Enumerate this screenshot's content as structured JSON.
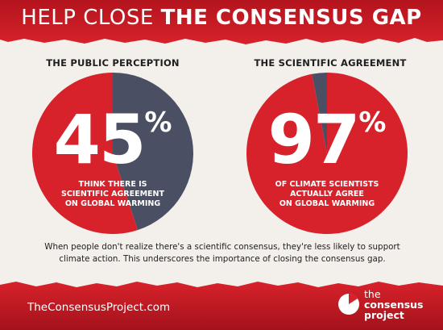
{
  "header": {
    "title_light": "HELP CLOSE",
    "title_bold": "THE CONSENSUS GAP"
  },
  "colors": {
    "red": "#d8222b",
    "dark_red": "#a3121b",
    "slate": "#4a4f63",
    "background": "#f3efea",
    "white": "#ffffff"
  },
  "chart_data": [
    {
      "type": "pie",
      "title": "THE PUBLIC PERCEPTION",
      "percent_label": "45",
      "percent_sign": "%",
      "caption": [
        "THINK THERE IS",
        "SCIENTIFIC AGREEMENT",
        "ON GLOBAL WARMING"
      ],
      "slices": [
        {
          "value": 45,
          "color": "#4a4f63"
        },
        {
          "value": 55,
          "color": "#d8222b"
        }
      ]
    },
    {
      "type": "pie",
      "title": "THE SCIENTIFIC AGREEMENT",
      "percent_label": "97",
      "percent_sign": "%",
      "caption": [
        "OF CLIMATE SCIENTISTS",
        "ACTUALLY AGREE",
        "ON GLOBAL WARMING"
      ],
      "slices": [
        {
          "value": 97,
          "color": "#d8222b"
        },
        {
          "value": 3,
          "color": "#4a4f63"
        }
      ]
    }
  ],
  "body_text": [
    "When people don't realize there's a scientific consensus, they're less likely to support",
    "climate action. This underscores the importance of closing the consensus gap."
  ],
  "footer": {
    "url": "TheConsensusProject.com",
    "logo_lines": [
      "the",
      "consensus",
      "project"
    ],
    "logo_icon": "consensus-pie-logo-icon"
  }
}
